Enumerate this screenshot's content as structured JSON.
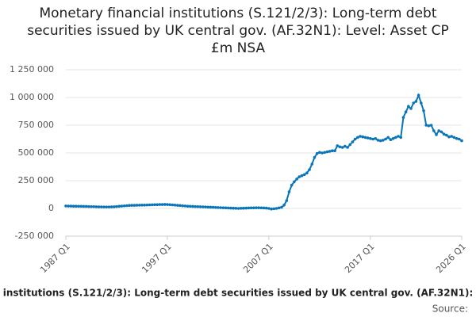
{
  "chart_data": {
    "type": "line",
    "title": "Monetary financial institutions (S.121/2/3): Long-term debt securities issued by UK central gov. (AF.32N1): Level: Asset CP £m NSA",
    "caption": "institutions (S.121/2/3): Long-term debt securities issued by UK central gov. (AF.32N1):",
    "source": "Source:",
    "color": "#0a75b8",
    "grid": true,
    "ylim": [
      -250000,
      1250000
    ],
    "yticks": [
      {
        "value": -250000,
        "label": "-250 000"
      },
      0,
      {
        "value": 250000,
        "label": "250 000"
      },
      {
        "value": 500000,
        "label": "500 000"
      },
      {
        "value": 750000,
        "label": "750 000"
      },
      {
        "value": 1000000,
        "label": "1 000 000"
      },
      {
        "value": 1250000,
        "label": "1 250 000"
      }
    ],
    "categories": [
      "1987 Q1",
      null,
      null,
      null,
      null,
      null,
      null,
      null,
      null,
      null,
      null,
      null,
      null,
      null,
      null,
      null,
      null,
      null,
      null,
      null,
      null,
      null,
      null,
      null,
      null,
      null,
      null,
      null,
      null,
      null,
      null,
      null,
      null,
      null,
      null,
      null,
      null,
      null,
      null,
      null,
      "1997 Q1",
      null,
      null,
      null,
      null,
      null,
      null,
      null,
      null,
      null,
      null,
      null,
      null,
      null,
      null,
      null,
      null,
      null,
      null,
      null,
      null,
      null,
      null,
      null,
      null,
      null,
      null,
      null,
      null,
      null,
      null,
      null,
      null,
      null,
      null,
      null,
      null,
      null,
      null,
      null,
      "2007 Q1",
      null,
      null,
      null,
      null,
      null,
      null,
      null,
      null,
      null,
      null,
      null,
      null,
      null,
      null,
      null,
      null,
      null,
      null,
      null,
      null,
      null,
      null,
      null,
      null,
      null,
      null,
      null,
      null,
      null,
      null,
      null,
      null,
      null,
      null,
      null,
      null,
      null,
      null,
      null,
      "2017 Q1",
      null,
      null,
      null,
      null,
      null,
      null,
      null,
      null,
      null,
      null,
      null,
      null,
      null,
      null,
      null,
      null,
      null,
      null,
      null,
      null,
      null,
      null,
      null,
      null,
      null,
      null,
      null,
      null,
      null,
      null,
      null,
      null,
      null,
      null,
      null,
      "2026 Q1"
    ],
    "values": [
      22000,
      21000,
      21000,
      20000,
      20000,
      19000,
      19000,
      18000,
      18000,
      17000,
      16000,
      16000,
      15000,
      14000,
      14000,
      13000,
      13000,
      13000,
      14000,
      15000,
      17000,
      19000,
      21000,
      23000,
      25000,
      27000,
      28000,
      28000,
      29000,
      29000,
      30000,
      30000,
      31000,
      32000,
      33000,
      34000,
      34000,
      35000,
      35000,
      36000,
      35000,
      34000,
      32000,
      30000,
      28000,
      26000,
      24000,
      22000,
      20000,
      19000,
      18000,
      17000,
      16000,
      15000,
      14000,
      13000,
      12000,
      11000,
      10000,
      9000,
      8000,
      7000,
      6000,
      5000,
      4000,
      3000,
      2000,
      1000,
      0,
      1000,
      2000,
      3000,
      4000,
      5000,
      5000,
      6000,
      6000,
      5000,
      4000,
      3000,
      0,
      -5000,
      -3000,
      0,
      5000,
      10000,
      30000,
      70000,
      150000,
      210000,
      240000,
      265000,
      285000,
      295000,
      305000,
      320000,
      350000,
      400000,
      460000,
      495000,
      505000,
      500000,
      505000,
      510000,
      515000,
      520000,
      520000,
      565000,
      555000,
      550000,
      560000,
      550000,
      575000,
      600000,
      625000,
      640000,
      650000,
      645000,
      640000,
      635000,
      630000,
      625000,
      630000,
      615000,
      610000,
      615000,
      625000,
      640000,
      620000,
      630000,
      640000,
      650000,
      640000,
      820000,
      870000,
      920000,
      900000,
      950000,
      965000,
      1020000,
      950000,
      880000,
      750000,
      745000,
      750000,
      700000,
      665000,
      700000,
      690000,
      670000,
      660000,
      645000,
      650000,
      640000,
      630000,
      625000,
      610000
    ]
  }
}
